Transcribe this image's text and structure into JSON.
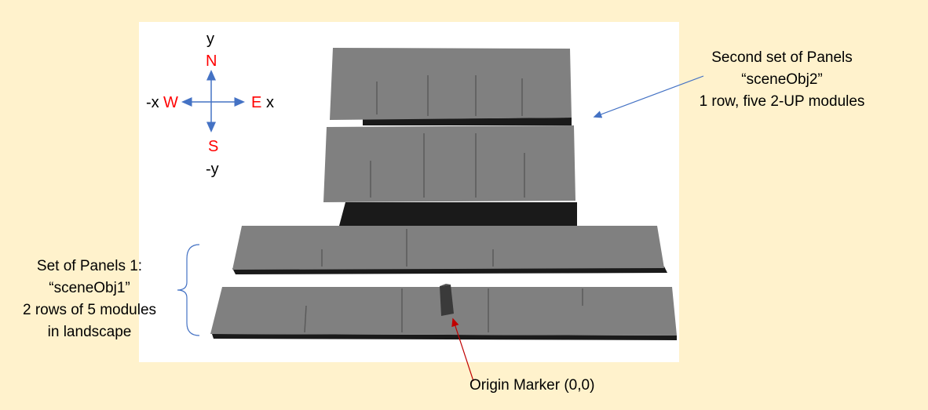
{
  "compass": {
    "y_label": "y",
    "neg_y_label": "-y",
    "x_label": "x",
    "neg_x_label": "-x",
    "north": "N",
    "south": "S",
    "east": "E",
    "west": "W"
  },
  "annotations": {
    "second_set": {
      "line1": "Second set of Panels",
      "line2": "“sceneObj2”",
      "line3": "1 row, five 2-UP modules"
    },
    "first_set": {
      "line1": "Set of Panels 1:",
      "line2": "“sceneObj1”",
      "line3": "2 rows of 5 modules",
      "line4": "in landscape"
    },
    "origin_marker": "Origin Marker (0,0)"
  },
  "colors": {
    "background": "#fff2cc",
    "panel": "#808080",
    "shadow": "#1a1a1a",
    "label_red": "#ff0000",
    "arrow_blue": "#4472c4",
    "arrow_red": "#c00000"
  }
}
